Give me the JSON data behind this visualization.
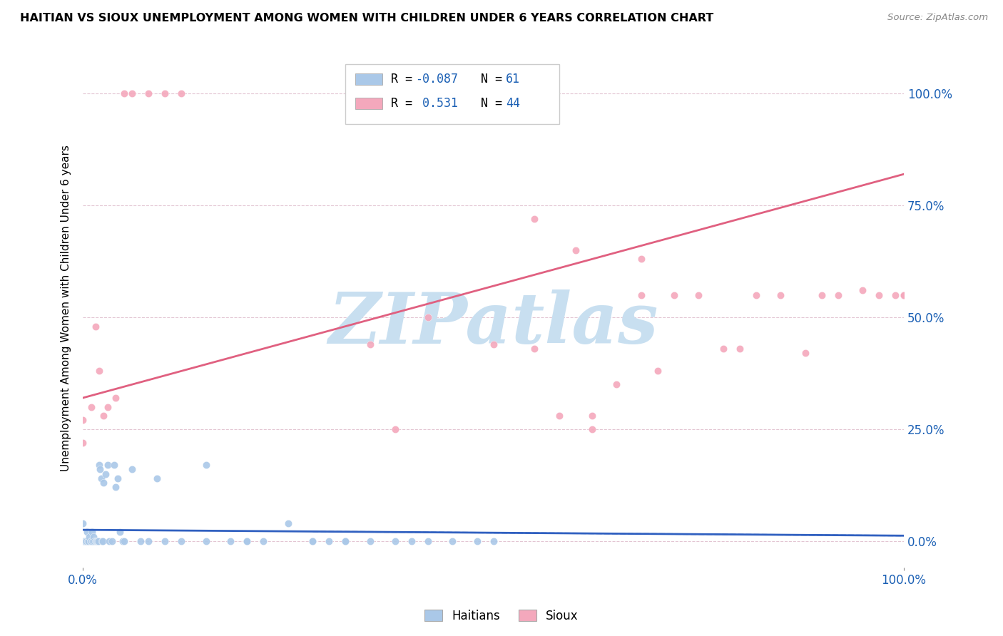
{
  "title": "HAITIAN VS SIOUX UNEMPLOYMENT AMONG WOMEN WITH CHILDREN UNDER 6 YEARS CORRELATION CHART",
  "source": "Source: ZipAtlas.com",
  "ylabel": "Unemployment Among Women with Children Under 6 years",
  "ytick_labels": [
    "0.0%",
    "25.0%",
    "50.0%",
    "75.0%",
    "100.0%"
  ],
  "ytick_values": [
    0.0,
    0.25,
    0.5,
    0.75,
    1.0
  ],
  "xlim": [
    0.0,
    1.0
  ],
  "ylim": [
    -0.06,
    1.1
  ],
  "haitian_color": "#aac8e8",
  "sioux_color": "#f4a8bc",
  "haitian_line_color": "#3060c0",
  "sioux_line_color": "#e06080",
  "haitian_line_style": "-",
  "sioux_line_style": "-",
  "R_haitian": -0.087,
  "N_haitian": 61,
  "R_sioux": 0.531,
  "N_sioux": 44,
  "legend_R_color": "#1a5fb4",
  "legend_N_color": "#1a5fb4",
  "watermark_text": "ZIPatlas",
  "watermark_color": "#c8dff0",
  "grid_color": "#ddb8c8",
  "haitian_scatter_x": [
    0.0,
    0.001,
    0.002,
    0.003,
    0.004,
    0.005,
    0.006,
    0.007,
    0.008,
    0.009,
    0.01,
    0.011,
    0.012,
    0.013,
    0.014,
    0.015,
    0.016,
    0.017,
    0.018,
    0.019,
    0.02,
    0.021,
    0.022,
    0.023,
    0.024,
    0.025,
    0.028,
    0.03,
    0.032,
    0.035,
    0.038,
    0.04,
    0.042,
    0.045,
    0.048,
    0.05,
    0.06,
    0.07,
    0.08,
    0.09,
    0.1,
    0.12,
    0.15,
    0.18,
    0.2,
    0.22,
    0.25,
    0.28,
    0.3,
    0.32,
    0.35,
    0.38,
    0.4,
    0.42,
    0.45,
    0.48,
    0.5,
    0.32,
    0.28,
    0.2,
    0.15
  ],
  "haitian_scatter_y": [
    0.04,
    0.0,
    0.0,
    0.0,
    0.0,
    0.02,
    0.0,
    0.0,
    0.01,
    0.0,
    0.0,
    0.02,
    0.0,
    0.01,
    0.0,
    0.0,
    0.0,
    0.0,
    0.0,
    0.0,
    0.17,
    0.16,
    0.14,
    0.0,
    0.0,
    0.13,
    0.15,
    0.17,
    0.0,
    0.0,
    0.17,
    0.12,
    0.14,
    0.02,
    0.0,
    0.0,
    0.16,
    0.0,
    0.0,
    0.14,
    0.0,
    0.0,
    0.17,
    0.0,
    0.0,
    0.0,
    0.04,
    0.0,
    0.0,
    0.0,
    0.0,
    0.0,
    0.0,
    0.0,
    0.0,
    0.0,
    0.0,
    0.0,
    0.0,
    0.0,
    0.0
  ],
  "sioux_scatter_x": [
    0.0,
    0.0,
    0.01,
    0.015,
    0.02,
    0.025,
    0.03,
    0.04,
    0.05,
    0.06,
    0.08,
    0.1,
    0.12,
    0.35,
    0.38,
    0.42,
    0.5,
    0.55,
    0.6,
    0.62,
    0.65,
    0.68,
    0.7,
    0.72,
    0.75,
    0.78,
    0.8,
    0.82,
    0.85,
    0.88,
    0.9,
    0.92,
    0.95,
    0.97,
    0.99,
    1.0,
    1.0,
    1.0,
    1.0,
    1.0,
    0.55,
    0.58,
    0.62,
    0.68
  ],
  "sioux_scatter_y": [
    0.27,
    0.22,
    0.3,
    0.48,
    0.38,
    0.28,
    0.3,
    0.32,
    1.0,
    1.0,
    1.0,
    1.0,
    1.0,
    0.44,
    0.25,
    0.5,
    0.44,
    0.43,
    0.65,
    0.28,
    0.35,
    0.63,
    0.38,
    0.55,
    0.55,
    0.43,
    0.43,
    0.55,
    0.55,
    0.42,
    0.55,
    0.55,
    0.56,
    0.55,
    0.55,
    0.55,
    0.55,
    0.55,
    0.55,
    0.55,
    0.72,
    0.28,
    0.25,
    0.55
  ],
  "sioux_line_y0": 0.32,
  "sioux_line_y1": 0.82,
  "haitian_line_y0": 0.025,
  "haitian_line_y1": 0.012
}
